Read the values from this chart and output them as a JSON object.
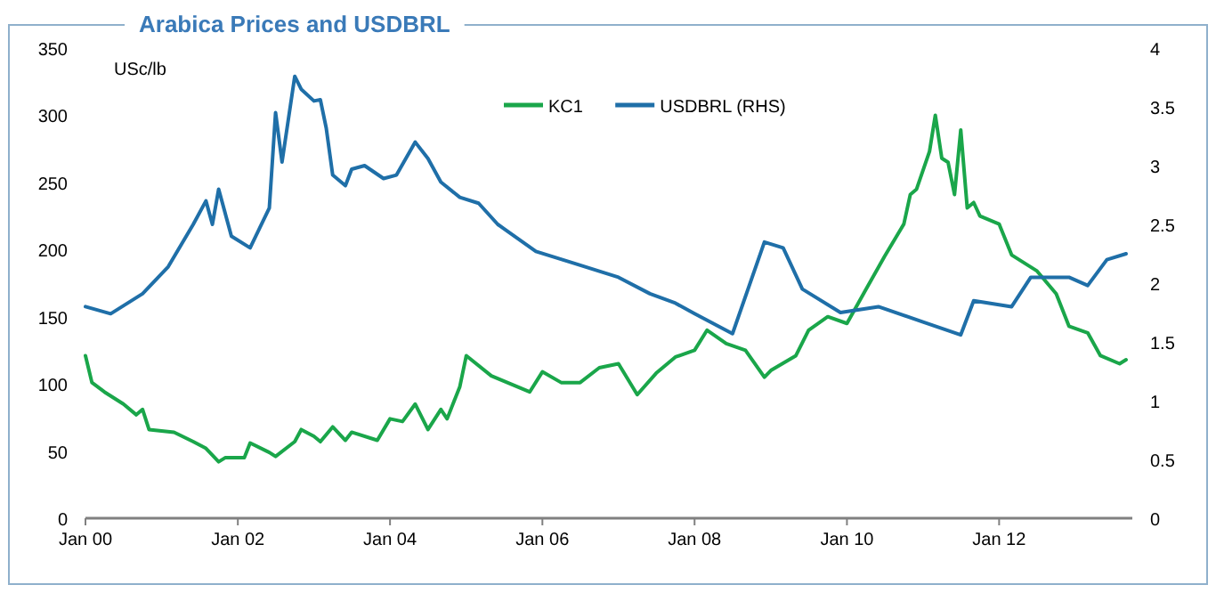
{
  "chart_data": {
    "type": "line",
    "title": "Arabica Prices and USDBRL",
    "ylabel": "USc/lb",
    "xlim": [
      "2000-01",
      "2013-10"
    ],
    "xticks": [
      {
        "value": "2000-01",
        "label": "Jan 00"
      },
      {
        "value": "2002-01",
        "label": "Jan 02"
      },
      {
        "value": "2004-01",
        "label": "Jan 04"
      },
      {
        "value": "2006-01",
        "label": "Jan 06"
      },
      {
        "value": "2008-01",
        "label": "Jan 08"
      },
      {
        "value": "2010-01",
        "label": "Jan 10"
      },
      {
        "value": "2012-01",
        "label": "Jan 12"
      }
    ],
    "ylim": [
      0,
      350
    ],
    "yticks": [
      0,
      50,
      100,
      150,
      200,
      250,
      300,
      350
    ],
    "y2lim": [
      0,
      4
    ],
    "y2ticks": [
      0,
      0.5,
      1,
      1.5,
      2,
      2.5,
      3,
      3.5,
      4
    ],
    "grid": false,
    "legend": "top",
    "marker": "none",
    "line_style": "solid",
    "series": [
      {
        "name": "KC1",
        "color": "#1aa64a",
        "x": [
          "2000-01",
          "2000-02",
          "2000-04",
          "2000-07",
          "2000-09",
          "2000-10",
          "2000-11",
          "2001-03",
          "2001-06",
          "2001-08",
          "2001-10",
          "2001-11",
          "2002-02",
          "2002-03",
          "2002-06",
          "2002-07",
          "2002-10",
          "2002-11",
          "2003-01",
          "2003-02",
          "2003-04",
          "2003-06",
          "2003-07",
          "2003-11",
          "2004-01",
          "2004-03",
          "2004-05",
          "2004-07",
          "2004-09",
          "2004-10",
          "2004-12",
          "2005-01",
          "2005-05",
          "2005-08",
          "2005-11",
          "2006-01",
          "2006-04",
          "2006-07",
          "2006-10",
          "2007-01",
          "2007-04",
          "2007-07",
          "2007-10",
          "2008-01",
          "2008-03",
          "2008-06",
          "2008-09",
          "2008-12",
          "2009-01",
          "2009-05",
          "2009-07",
          "2009-10",
          "2010-01",
          "2010-04",
          "2010-07",
          "2010-10",
          "2010-11",
          "2010-12",
          "2011-02",
          "2011-03",
          "2011-04",
          "2011-05",
          "2011-06",
          "2011-07",
          "2011-08",
          "2011-09",
          "2011-10",
          "2012-01",
          "2012-03",
          "2012-07",
          "2012-10",
          "2012-12",
          "2013-03",
          "2013-05",
          "2013-08",
          "2013-09"
        ],
        "values": [
          121,
          101,
          94,
          85,
          77,
          81,
          66,
          64,
          57,
          52,
          42,
          45,
          45,
          56,
          49,
          46,
          57,
          66,
          61,
          57,
          68,
          58,
          64,
          58,
          74,
          72,
          85,
          66,
          81,
          74,
          98,
          121,
          106,
          100,
          94,
          109,
          101,
          101,
          112,
          115,
          92,
          108,
          120,
          125,
          140,
          130,
          125,
          105,
          110,
          121,
          140,
          150,
          145,
          170,
          195,
          219,
          241,
          245,
          273,
          300,
          268,
          265,
          241,
          289,
          231,
          235,
          225,
          219,
          196,
          184,
          167,
          143,
          138,
          121,
          115,
          118
        ]
      },
      {
        "name": "USDBRL (RHS)",
        "color": "#1f6fa8",
        "axis": "y2",
        "x": [
          "2000-01",
          "2000-05",
          "2000-10",
          "2001-02",
          "2001-06",
          "2001-08",
          "2001-09",
          "2001-10",
          "2001-12",
          "2002-03",
          "2002-06",
          "2002-07",
          "2002-08",
          "2002-10",
          "2002-11",
          "2003-01",
          "2003-02",
          "2003-03",
          "2003-04",
          "2003-06",
          "2003-07",
          "2003-09",
          "2003-12",
          "2004-02",
          "2004-05",
          "2004-07",
          "2004-09",
          "2004-12",
          "2005-03",
          "2005-06",
          "2005-12",
          "2006-06",
          "2007-01",
          "2007-06",
          "2007-10",
          "2008-01",
          "2008-07",
          "2008-12",
          "2009-03",
          "2009-06",
          "2009-12",
          "2010-06",
          "2011-01",
          "2011-07",
          "2011-09",
          "2012-03",
          "2012-06",
          "2012-12",
          "2013-03",
          "2013-06",
          "2013-09"
        ],
        "values": [
          1.8,
          1.74,
          1.91,
          2.14,
          2.5,
          2.7,
          2.5,
          2.8,
          2.4,
          2.3,
          2.64,
          3.45,
          3.03,
          3.76,
          3.65,
          3.55,
          3.56,
          3.32,
          2.92,
          2.83,
          2.97,
          3.0,
          2.89,
          2.92,
          3.2,
          3.06,
          2.86,
          2.73,
          2.68,
          2.5,
          2.27,
          2.17,
          2.05,
          1.91,
          1.83,
          1.74,
          1.57,
          2.35,
          2.3,
          1.95,
          1.75,
          1.8,
          1.67,
          1.56,
          1.85,
          1.8,
          2.05,
          2.05,
          1.98,
          2.2,
          2.25
        ]
      }
    ]
  }
}
